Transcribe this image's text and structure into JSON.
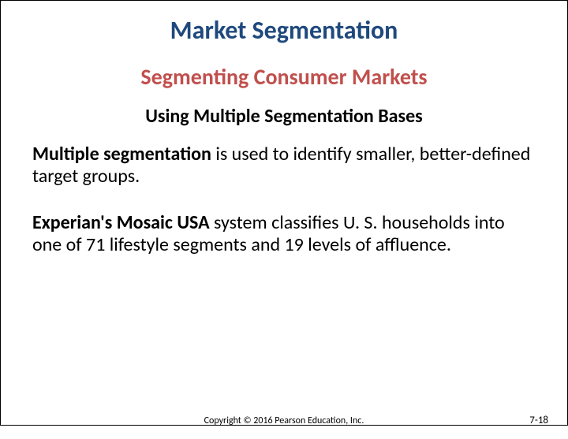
{
  "title": {
    "text": "Market Segmentation",
    "color": "#1f497d",
    "fontsize": 32
  },
  "subtitle": {
    "text": "Segmenting Consumer Markets",
    "color": "#c0504d",
    "fontsize": 28
  },
  "heading3": {
    "text": "Using Multiple Segmentation Bases",
    "color": "#000000",
    "fontsize": 24
  },
  "body": {
    "color": "#000000",
    "fontsize": 24,
    "para1_bold": "Multiple segmentation",
    "para1_rest": " is used to identify smaller, better-defined target groups.",
    "para2_bold": "Experian's Mosaic USA",
    "para2_rest": " system classifies U. S. households into one of 71 lifestyle segments and 19 levels of affluence."
  },
  "footer": {
    "copyright": "Copyright © 2016 Pearson Education, Inc.",
    "copyright_fontsize": 12,
    "copyright_color": "#000000",
    "pagenum": "7-18",
    "pagenum_fontsize": 13,
    "pagenum_color": "#000000"
  }
}
